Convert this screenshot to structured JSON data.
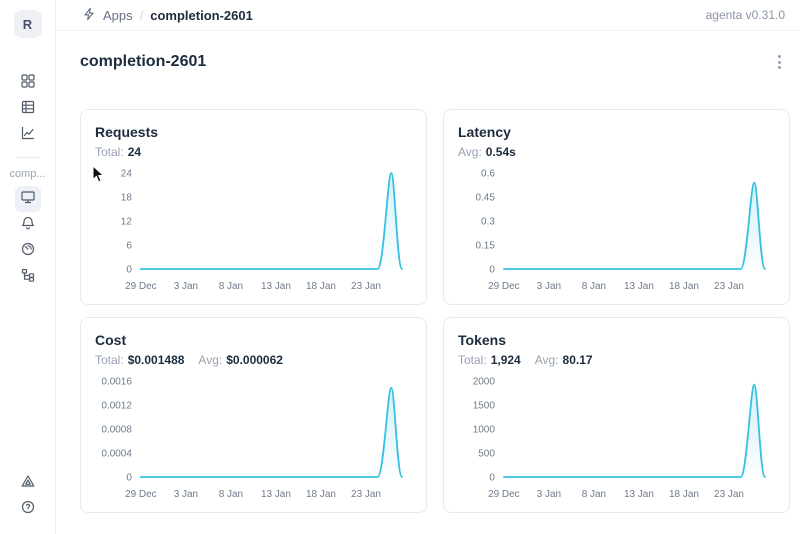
{
  "topbar": {
    "breadcrumb": {
      "icon": "bolt-icon",
      "app_label": "Apps",
      "separator": "/",
      "current": "completion-2601"
    },
    "version": "agenta v0.31.0"
  },
  "sidebar": {
    "avatar_initial": "R",
    "section_label": "comp...",
    "top_items": [
      {
        "icon": "grid-icon"
      },
      {
        "icon": "table-rows-icon"
      },
      {
        "icon": "line-chart-icon"
      }
    ],
    "app_items": [
      {
        "icon": "monitor-icon",
        "active": true
      },
      {
        "icon": "bell-icon"
      },
      {
        "icon": "gauge-icon"
      },
      {
        "icon": "tree-structure-icon"
      }
    ],
    "bottom_items": [
      {
        "icon": "triangle-alert-icon"
      },
      {
        "icon": "help-icon"
      }
    ]
  },
  "page": {
    "title": "completion-2601",
    "menu_icon": "kebab-vertical"
  },
  "colors": {
    "accent_line": "#35C0E0",
    "card_border": "#E8EAED",
    "text_dark": "#1C2C3E",
    "text_gray": "#98A2B3",
    "tick_gray": "#6E7A8A",
    "active_item_bg": "#EDF0F4"
  },
  "chart_data": [
    {
      "type": "area",
      "title": "Requests",
      "stats": [
        {
          "label": "Total:",
          "value": "24"
        }
      ],
      "x_ticks": [
        "29 Dec",
        "3 Jan",
        "8 Jan",
        "13 Jan",
        "18 Jan",
        "23 Jan"
      ],
      "x_tick_interval_days": 5,
      "x_span_days": 29,
      "y_ticks": [
        "0",
        "6",
        "12",
        "18",
        "24"
      ],
      "ylim": [
        0,
        24
      ],
      "grid": false,
      "legend": false,
      "series": [
        {
          "name": "Requests",
          "points": [
            [
              0,
              0
            ],
            [
              26.3,
              0
            ],
            [
              27.8,
              24
            ],
            [
              29,
              0
            ]
          ]
        }
      ],
      "line_color": "#35C0E0"
    },
    {
      "type": "area",
      "title": "Latency",
      "stats": [
        {
          "label": "Avg:",
          "value": "0.54s"
        }
      ],
      "x_ticks": [
        "29 Dec",
        "3 Jan",
        "8 Jan",
        "13 Jan",
        "18 Jan",
        "23 Jan"
      ],
      "x_tick_interval_days": 5,
      "x_span_days": 29,
      "y_ticks": [
        "0",
        "0.15",
        "0.3",
        "0.45",
        "0.6"
      ],
      "ylim": [
        0,
        0.6
      ],
      "grid": false,
      "legend": false,
      "series": [
        {
          "name": "Latency",
          "points": [
            [
              0,
              0
            ],
            [
              26.3,
              0
            ],
            [
              27.8,
              0.54
            ],
            [
              29,
              0
            ]
          ]
        }
      ],
      "line_color": "#35C0E0"
    },
    {
      "type": "area",
      "title": "Cost",
      "stats": [
        {
          "label": "Total:",
          "value": "$0.001488"
        },
        {
          "label": "Avg:",
          "value": "$0.000062"
        }
      ],
      "x_ticks": [
        "29 Dec",
        "3 Jan",
        "8 Jan",
        "13 Jan",
        "18 Jan",
        "23 Jan"
      ],
      "x_tick_interval_days": 5,
      "x_span_days": 29,
      "y_ticks": [
        "0",
        "0.0004",
        "0.0008",
        "0.0012",
        "0.0016"
      ],
      "ylim": [
        0,
        0.0016
      ],
      "grid": false,
      "legend": false,
      "series": [
        {
          "name": "Cost",
          "points": [
            [
              0,
              0
            ],
            [
              26.3,
              0
            ],
            [
              27.8,
              0.001488
            ],
            [
              29,
              0
            ]
          ]
        }
      ],
      "line_color": "#35C0E0"
    },
    {
      "type": "area",
      "title": "Tokens",
      "stats": [
        {
          "label": "Total:",
          "value": "1,924"
        },
        {
          "label": "Avg:",
          "value": "80.17"
        }
      ],
      "x_ticks": [
        "29 Dec",
        "3 Jan",
        "8 Jan",
        "13 Jan",
        "18 Jan",
        "23 Jan"
      ],
      "x_tick_interval_days": 5,
      "x_span_days": 29,
      "y_ticks": [
        "0",
        "500",
        "1000",
        "1500",
        "2000"
      ],
      "ylim": [
        0,
        2000
      ],
      "grid": false,
      "legend": false,
      "series": [
        {
          "name": "Tokens",
          "points": [
            [
              0,
              0
            ],
            [
              26.3,
              0
            ],
            [
              27.8,
              1924
            ],
            [
              29,
              0
            ]
          ]
        }
      ],
      "line_color": "#35C0E0"
    }
  ]
}
